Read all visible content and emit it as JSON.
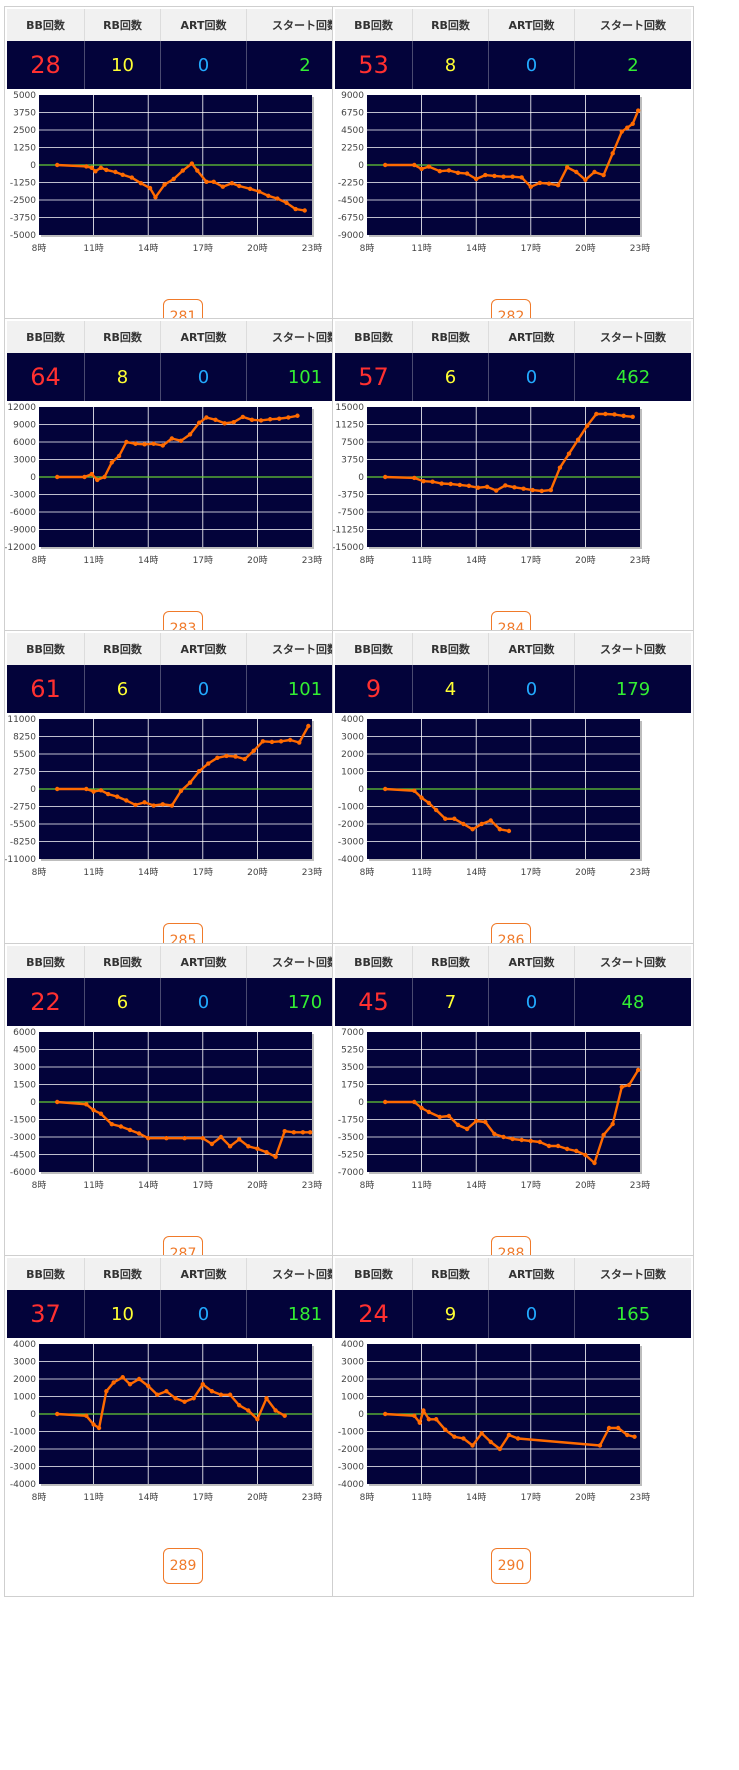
{
  "labels": {
    "bb": "BB回数",
    "rb": "RB回数",
    "art": "ART回数",
    "start": "スタート回数"
  },
  "colors": {
    "bg": "#03033a",
    "line": "#ff6a00",
    "zero": "#66cc33",
    "bb": "#ff3030",
    "rb": "#ffff33",
    "art": "#22aaff",
    "start": "#33ee33"
  },
  "machines": [
    {
      "number": "281",
      "bb": "28",
      "rb": "10",
      "art": "0",
      "start": "2",
      "chart_data": {
        "type": "line",
        "x_ticks": [
          "8時",
          "11時",
          "14時",
          "17時",
          "20時",
          "23時"
        ],
        "xlim": [
          8,
          23
        ],
        "y_ticks": [
          "5000",
          "3750",
          "2500",
          "1250",
          "0",
          "-1250",
          "-2500",
          "-3750",
          "-5000"
        ],
        "ylim": [
          -5000,
          5000
        ],
        "x": [
          9,
          10.6,
          10.9,
          11.1,
          11.4,
          11.7,
          12.2,
          12.6,
          13.1,
          13.6,
          14.1,
          14.4,
          14.9,
          15.4,
          15.9,
          16.4,
          16.7,
          17.2,
          17.6,
          18.1,
          18.6,
          19.0,
          19.6,
          20.1,
          20.6,
          21.1,
          21.6,
          22.1,
          22.6
        ],
        "y": [
          0,
          -100,
          -200,
          -450,
          -200,
          -350,
          -500,
          -700,
          -900,
          -1300,
          -1650,
          -2300,
          -1400,
          -1000,
          -400,
          100,
          -400,
          -1200,
          -1200,
          -1550,
          -1300,
          -1500,
          -1700,
          -1900,
          -2200,
          -2400,
          -2700,
          -3150,
          -3250
        ]
      }
    },
    {
      "number": "282",
      "bb": "53",
      "rb": "8",
      "art": "0",
      "start": "2",
      "chart_data": {
        "type": "line",
        "x_ticks": [
          "8時",
          "11時",
          "14時",
          "17時",
          "20時",
          "23時"
        ],
        "xlim": [
          8,
          23
        ],
        "y_ticks": [
          "9000",
          "6750",
          "4500",
          "2250",
          "0",
          "-2250",
          "-4500",
          "-6750",
          "-9000"
        ],
        "ylim": [
          -9000,
          9000
        ],
        "x": [
          9,
          10.6,
          11.0,
          11.4,
          12.0,
          12.5,
          13.0,
          13.5,
          14.0,
          14.5,
          15.0,
          15.5,
          16.0,
          16.5,
          17.0,
          17.5,
          18.0,
          18.5,
          19.0,
          19.5,
          20.0,
          20.5,
          21.0,
          21.5,
          22.0,
          22.3,
          22.6,
          22.9
        ],
        "y": [
          0,
          0,
          -500,
          -200,
          -800,
          -700,
          -1000,
          -1100,
          -1800,
          -1300,
          -1400,
          -1500,
          -1500,
          -1600,
          -2800,
          -2300,
          -2400,
          -2600,
          -300,
          -900,
          -1900,
          -900,
          -1300,
          1500,
          4300,
          4800,
          5300,
          7000
        ]
      }
    },
    {
      "number": "283",
      "bb": "64",
      "rb": "8",
      "art": "0",
      "start": "101",
      "chart_data": {
        "type": "line",
        "x_ticks": [
          "8時",
          "11時",
          "14時",
          "17時",
          "20時",
          "23時"
        ],
        "xlim": [
          8,
          23
        ],
        "y_ticks": [
          "12000",
          "9000",
          "6000",
          "3000",
          "0",
          "-3000",
          "-6000",
          "-9000",
          "-12000"
        ],
        "ylim": [
          -12000,
          12000
        ],
        "x": [
          9,
          10.5,
          10.9,
          11.2,
          11.6,
          12.0,
          12.4,
          12.8,
          13.3,
          13.8,
          14.3,
          14.8,
          15.3,
          15.8,
          16.3,
          16.8,
          17.2,
          17.7,
          18.2,
          18.7,
          19.2,
          19.7,
          20.2,
          20.7,
          21.2,
          21.7,
          22.2
        ],
        "y": [
          0,
          0,
          500,
          -500,
          0,
          2500,
          3600,
          6000,
          5700,
          5600,
          5700,
          5400,
          6600,
          6200,
          7300,
          9300,
          10200,
          9800,
          9200,
          9400,
          10300,
          9800,
          9700,
          9900,
          10000,
          10200,
          10500
        ]
      }
    },
    {
      "number": "284",
      "bb": "57",
      "rb": "6",
      "art": "0",
      "start": "462",
      "chart_data": {
        "type": "line",
        "x_ticks": [
          "8時",
          "11時",
          "14時",
          "17時",
          "20時",
          "23時"
        ],
        "xlim": [
          8,
          23
        ],
        "y_ticks": [
          "15000",
          "11250",
          "7500",
          "3750",
          "0",
          "-3750",
          "-7500",
          "-11250",
          "-15000"
        ],
        "ylim": [
          -15000,
          15000
        ],
        "x": [
          9,
          10.6,
          11.1,
          11.6,
          12.1,
          12.6,
          13.1,
          13.6,
          14.1,
          14.6,
          15.1,
          15.6,
          16.1,
          16.6,
          17.1,
          17.6,
          18.1,
          18.6,
          19.1,
          19.6,
          20.1,
          20.6,
          21.1,
          21.6,
          22.1,
          22.6
        ],
        "y": [
          0,
          -200,
          -900,
          -1000,
          -1400,
          -1500,
          -1700,
          -1900,
          -2300,
          -2100,
          -2900,
          -1800,
          -2200,
          -2500,
          -2800,
          -3000,
          -2800,
          2000,
          5000,
          8000,
          11000,
          13500,
          13500,
          13400,
          13100,
          12900
        ]
      }
    },
    {
      "number": "285",
      "bb": "61",
      "rb": "6",
      "art": "0",
      "start": "101",
      "chart_data": {
        "type": "line",
        "x_ticks": [
          "8時",
          "11時",
          "14時",
          "17時",
          "20時",
          "23時"
        ],
        "xlim": [
          8,
          23
        ],
        "y_ticks": [
          "11000",
          "8250",
          "5500",
          "2750",
          "0",
          "-2750",
          "-5500",
          "-8250",
          "-11000"
        ],
        "ylim": [
          -11000,
          11000
        ],
        "x": [
          9,
          10.6,
          11.0,
          11.4,
          11.8,
          12.3,
          12.8,
          13.3,
          13.8,
          14.3,
          14.8,
          15.3,
          15.8,
          16.3,
          16.8,
          17.3,
          17.8,
          18.3,
          18.8,
          19.3,
          19.8,
          20.3,
          20.8,
          21.3,
          21.8,
          22.3,
          22.8
        ],
        "y": [
          0,
          0,
          -400,
          -200,
          -800,
          -1200,
          -1800,
          -2500,
          -2100,
          -2600,
          -2400,
          -2600,
          -300,
          1000,
          2800,
          4000,
          4900,
          5200,
          5100,
          4700,
          6000,
          7500,
          7400,
          7500,
          7700,
          7300,
          9900
        ]
      }
    },
    {
      "number": "286",
      "bb": "9",
      "rb": "4",
      "art": "0",
      "start": "179",
      "chart_data": {
        "type": "line",
        "x_ticks": [
          "8時",
          "11時",
          "14時",
          "17時",
          "20時",
          "23時"
        ],
        "xlim": [
          8,
          23
        ],
        "y_ticks": [
          "4000",
          "3000",
          "2000",
          "1000",
          "0",
          "-1000",
          "-2000",
          "-3000",
          "-4000"
        ],
        "ylim": [
          -4000,
          4000
        ],
        "x": [
          9,
          10.6,
          11.0,
          11.4,
          11.8,
          12.3,
          12.8,
          13.3,
          13.8,
          14.3,
          14.8,
          15.3,
          15.8
        ],
        "y": [
          0,
          -100,
          -500,
          -800,
          -1200,
          -1700,
          -1700,
          -2000,
          -2300,
          -2000,
          -1800,
          -2300,
          -2400
        ]
      }
    },
    {
      "number": "287",
      "bb": "22",
      "rb": "6",
      "art": "0",
      "start": "170",
      "chart_data": {
        "type": "line",
        "x_ticks": [
          "8時",
          "11時",
          "14時",
          "17時",
          "20時",
          "23時"
        ],
        "xlim": [
          8,
          23
        ],
        "y_ticks": [
          "6000",
          "4500",
          "3000",
          "1500",
          "0",
          "-1500",
          "-3000",
          "-4500",
          "-6000"
        ],
        "ylim": [
          -6000,
          6000
        ],
        "x": [
          9,
          10.6,
          11.0,
          11.4,
          12.0,
          12.5,
          13.0,
          13.5,
          14.0,
          15.0,
          16.0,
          17.0,
          17.5,
          18.0,
          18.5,
          19.0,
          19.5,
          20.0,
          20.5,
          21.0,
          21.5,
          22.0,
          22.5,
          22.9
        ],
        "y": [
          0,
          -200,
          -700,
          -1000,
          -1900,
          -2100,
          -2400,
          -2700,
          -3100,
          -3100,
          -3100,
          -3100,
          -3600,
          -3000,
          -3800,
          -3200,
          -3800,
          -4000,
          -4300,
          -4700,
          -2500,
          -2600,
          -2600,
          -2600
        ]
      }
    },
    {
      "number": "288",
      "bb": "45",
      "rb": "7",
      "art": "0",
      "start": "48",
      "chart_data": {
        "type": "line",
        "x_ticks": [
          "8時",
          "11時",
          "14時",
          "17時",
          "20時",
          "23時"
        ],
        "xlim": [
          8,
          23
        ],
        "y_ticks": [
          "7000",
          "5250",
          "3500",
          "1750",
          "0",
          "-1750",
          "-3500",
          "-5250",
          "-7000"
        ],
        "ylim": [
          -7000,
          7000
        ],
        "x": [
          9,
          10.6,
          11.0,
          11.4,
          12.0,
          12.5,
          13.0,
          13.5,
          14.0,
          14.5,
          15.0,
          15.5,
          16.0,
          16.5,
          17.0,
          17.5,
          18.0,
          18.5,
          19.0,
          19.5,
          20.0,
          20.5,
          21.0,
          21.5,
          22.0,
          22.4,
          22.9
        ],
        "y": [
          0,
          0,
          -600,
          -1000,
          -1500,
          -1400,
          -2300,
          -2700,
          -1900,
          -2000,
          -3200,
          -3500,
          -3700,
          -3800,
          -3900,
          -4000,
          -4400,
          -4400,
          -4700,
          -4900,
          -5300,
          -6100,
          -3300,
          -2200,
          1500,
          1700,
          3200
        ]
      }
    },
    {
      "number": "289",
      "bb": "37",
      "rb": "10",
      "art": "0",
      "start": "181",
      "chart_data": {
        "type": "line",
        "x_ticks": [
          "8時",
          "11時",
          "14時",
          "17時",
          "20時",
          "23時"
        ],
        "xlim": [
          8,
          23
        ],
        "y_ticks": [
          "4000",
          "3000",
          "2000",
          "1000",
          "0",
          "-1000",
          "-2000",
          "-3000",
          "-4000"
        ],
        "ylim": [
          -4000,
          4000
        ],
        "x": [
          9,
          10.6,
          11.0,
          11.3,
          11.7,
          12.1,
          12.6,
          13.0,
          13.5,
          14.0,
          14.5,
          15.0,
          15.5,
          16.0,
          16.5,
          17.0,
          17.5,
          18.0,
          18.5,
          19.0,
          19.5,
          20.0,
          20.5,
          21.0,
          21.5
        ],
        "y": [
          0,
          -100,
          -600,
          -800,
          1300,
          1800,
          2100,
          1700,
          2000,
          1600,
          1100,
          1300,
          900,
          700,
          900,
          1700,
          1300,
          1100,
          1100,
          500,
          200,
          -300,
          900,
          200,
          -100
        ]
      }
    },
    {
      "number": "290",
      "bb": "24",
      "rb": "9",
      "art": "0",
      "start": "165",
      "chart_data": {
        "type": "line",
        "x_ticks": [
          "8時",
          "11時",
          "14時",
          "17時",
          "20時",
          "23時"
        ],
        "xlim": [
          8,
          23
        ],
        "y_ticks": [
          "4000",
          "3000",
          "2000",
          "1000",
          "0",
          "-1000",
          "-2000",
          "-3000",
          "-4000"
        ],
        "ylim": [
          -4000,
          4000
        ],
        "x": [
          9,
          10.6,
          10.9,
          11.1,
          11.4,
          11.8,
          12.3,
          12.8,
          13.3,
          13.8,
          14.3,
          14.8,
          15.3,
          15.8,
          16.3,
          20.8,
          21.3,
          21.8,
          22.3,
          22.7
        ],
        "y": [
          0,
          -100,
          -500,
          200,
          -300,
          -300,
          -900,
          -1300,
          -1400,
          -1800,
          -1100,
          -1600,
          -2000,
          -1200,
          -1400,
          -1800,
          -800,
          -800,
          -1200,
          -1300
        ]
      }
    }
  ]
}
